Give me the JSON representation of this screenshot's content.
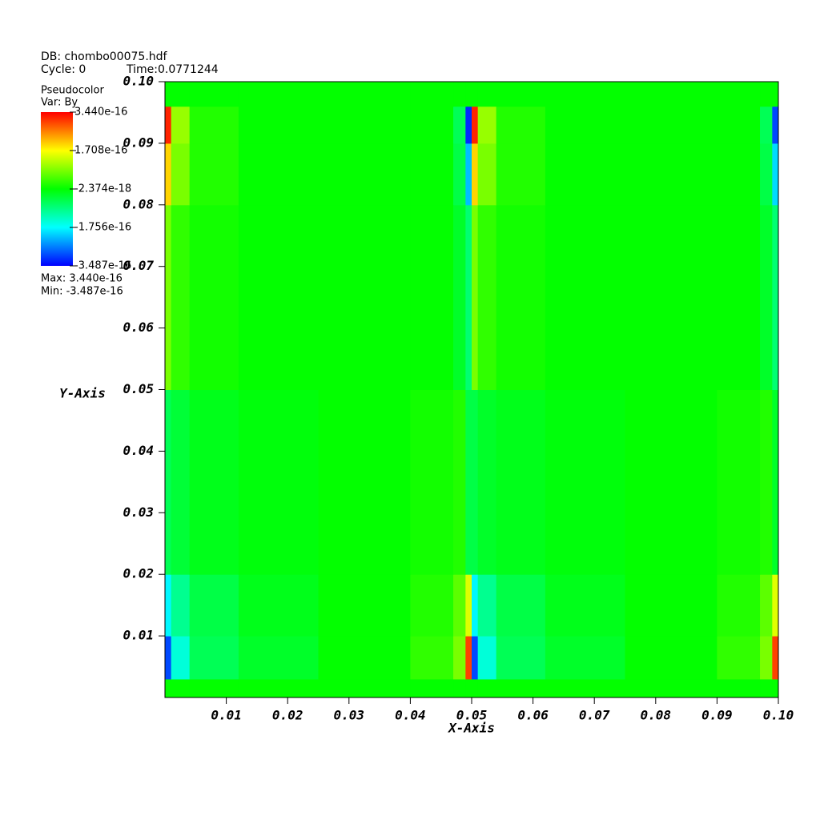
{
  "chart_data": {
    "type": "heatmap",
    "db_label": "DB: chombo00075.hdf",
    "cycle_label": "Cycle: 0",
    "time_label": "Time:0.0771244",
    "plot_label": "Pseudocolor",
    "var_label": "Var: By",
    "max_label": "Max:  3.440e-16",
    "min_label": "Min: -3.487e-16",
    "xlabel": "X-Axis",
    "ylabel": "Y-Axis",
    "xlim": [
      0,
      0.1
    ],
    "ylim": [
      0,
      0.1
    ],
    "xticks": [
      0.01,
      0.02,
      0.03,
      0.04,
      0.05,
      0.06,
      0.07,
      0.08,
      0.09,
      {
        "value": 0.1,
        "label": "0.10"
      }
    ],
    "yticks": [
      0.01,
      0.02,
      0.03,
      0.04,
      0.05,
      0.06,
      0.07,
      0.08,
      0.09,
      {
        "value": 0.1,
        "label": "0.10"
      }
    ],
    "clim": [
      -3.487e-16,
      3.44e-16
    ],
    "cticks": [
      {
        "value": 3.44e-16,
        "label": "3.440e-16"
      },
      {
        "value": 1.708e-16,
        "label": "1.708e-16"
      },
      {
        "value": -2.374e-18,
        "label": "-2.374e-18"
      },
      {
        "value": -1.756e-16,
        "label": "-1.756e-16"
      },
      {
        "value": -3.487e-16,
        "label": "-3.487e-16"
      }
    ],
    "x_edges": [
      0,
      0.001,
      0.004,
      0.012,
      0.025,
      0.04,
      0.047,
      0.049,
      0.05,
      0.051,
      0.054,
      0.062,
      0.075,
      0.09,
      0.097,
      0.099,
      0.1
    ],
    "y_edges": [
      0,
      0.003,
      0.01,
      0.02,
      0.05,
      0.08,
      0.09,
      0.096,
      0.1
    ],
    "values": [
      [
        0,
        0,
        0,
        0,
        0,
        0,
        0,
        0,
        0,
        0,
        0,
        0,
        0,
        0,
        0,
        0
      ],
      [
        -3e-16,
        -1.5e-16,
        -6e-17,
        -3e-17,
        0,
        3e-17,
        8e-17,
        3e-16,
        -3e-16,
        -1.5e-16,
        -6e-17,
        -3e-17,
        0,
        3e-17,
        8e-17,
        3e-16
      ],
      [
        -1.8e-16,
        -1e-16,
        -5e-17,
        -2e-17,
        0,
        2e-17,
        6e-17,
        1.5e-16,
        -1.8e-16,
        -1e-16,
        -5e-17,
        -2e-17,
        0,
        2e-17,
        6e-17,
        1.5e-16
      ],
      [
        -6e-17,
        -4e-17,
        -2e-17,
        -1e-17,
        0,
        1e-17,
        2e-17,
        -5e-17,
        -5e-17,
        -3e-17,
        -2e-17,
        -1e-17,
        0,
        1e-17,
        2e-17,
        -3e-17
      ],
      [
        8e-17,
        3e-17,
        1e-17,
        0,
        0,
        0,
        -3e-17,
        -8e-17,
        8e-17,
        3e-17,
        1e-17,
        0,
        0,
        0,
        -3e-17,
        -8e-17
      ],
      [
        2e-16,
        8e-17,
        2e-17,
        0,
        0,
        0,
        -5e-17,
        -2.2e-16,
        2e-16,
        8e-17,
        2e-17,
        0,
        0,
        0,
        -5e-17,
        -2e-16
      ],
      [
        3.2e-16,
        1e-16,
        2e-17,
        0,
        0,
        0,
        -6e-17,
        -3.2e-16,
        3.2e-16,
        1e-16,
        2e-17,
        0,
        0,
        0,
        -6e-17,
        -3e-16
      ],
      [
        0,
        0,
        0,
        0,
        0,
        0,
        0,
        0,
        0,
        0,
        0,
        0,
        0,
        0,
        0,
        0
      ]
    ]
  }
}
